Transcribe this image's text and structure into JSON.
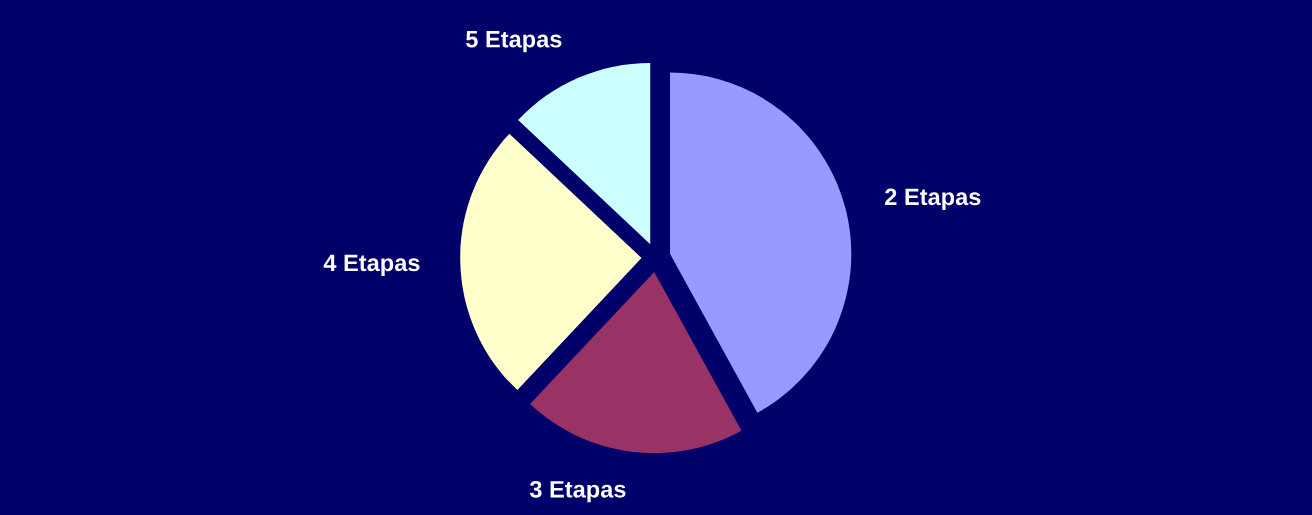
{
  "chart_data": {
    "type": "pie",
    "categories": [
      "2 Etapas",
      "3 Etapas",
      "4 Etapas",
      "5 Etapas"
    ],
    "values": [
      42,
      20,
      25,
      13
    ],
    "colors": [
      "#9999ff",
      "#993366",
      "#ffffcc",
      "#ccffff"
    ]
  }
}
